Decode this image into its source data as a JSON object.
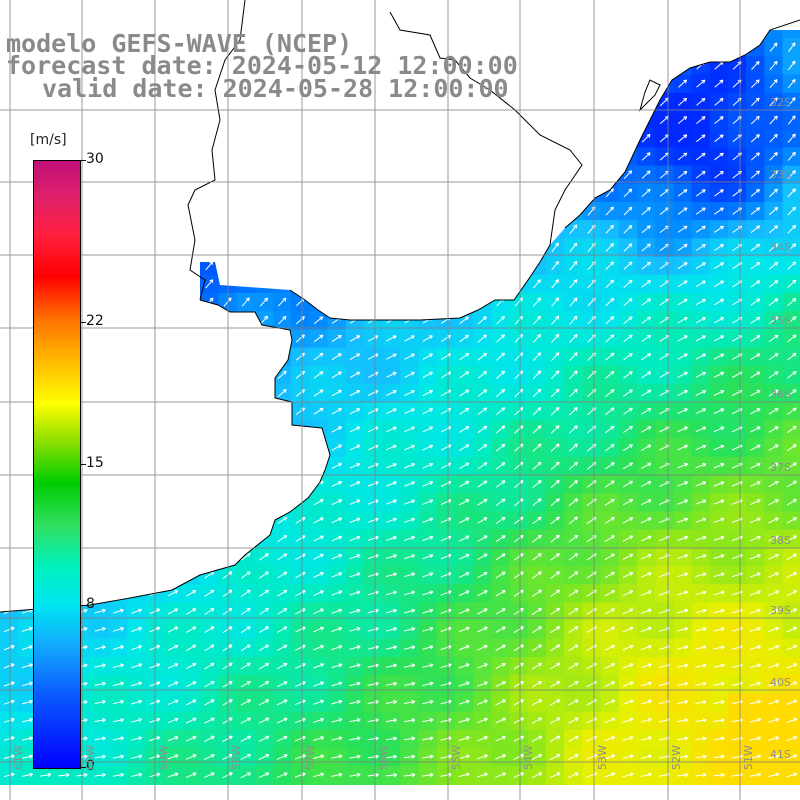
{
  "title": {
    "line1": "modelo GEFS-WAVE (NCEP)",
    "line2": "forecast date: 2024-05-12 12:00:00",
    "line3": "valid date: 2024-05-28 12:00:00"
  },
  "colorbar": {
    "unit": "[m/s]",
    "ticks": [
      "30",
      "22",
      "15",
      "8",
      "0"
    ],
    "tick_values": [
      30,
      22,
      15,
      8,
      0
    ],
    "range": [
      0,
      30
    ],
    "colors": [
      "#0000ff",
      "#12a8ff",
      "#00e6f0",
      "#00cc00",
      "#ffff00",
      "#ff7000",
      "#ff0000",
      "#c0107a"
    ]
  },
  "grid": {
    "lat_labels": [
      "32S",
      "33S",
      "34S",
      "35S",
      "36S",
      "37S",
      "38S",
      "39S",
      "40S",
      "41S"
    ],
    "lon_labels": [
      "61W",
      "60W",
      "59W",
      "58W",
      "57W",
      "56W",
      "55W",
      "54W",
      "53W",
      "52W",
      "51W"
    ]
  },
  "colors": {
    "land": "#ffffff",
    "coast": "#000000",
    "grid": "#808080",
    "arrows": "#ffffff",
    "title": "#8a8a8a"
  }
}
